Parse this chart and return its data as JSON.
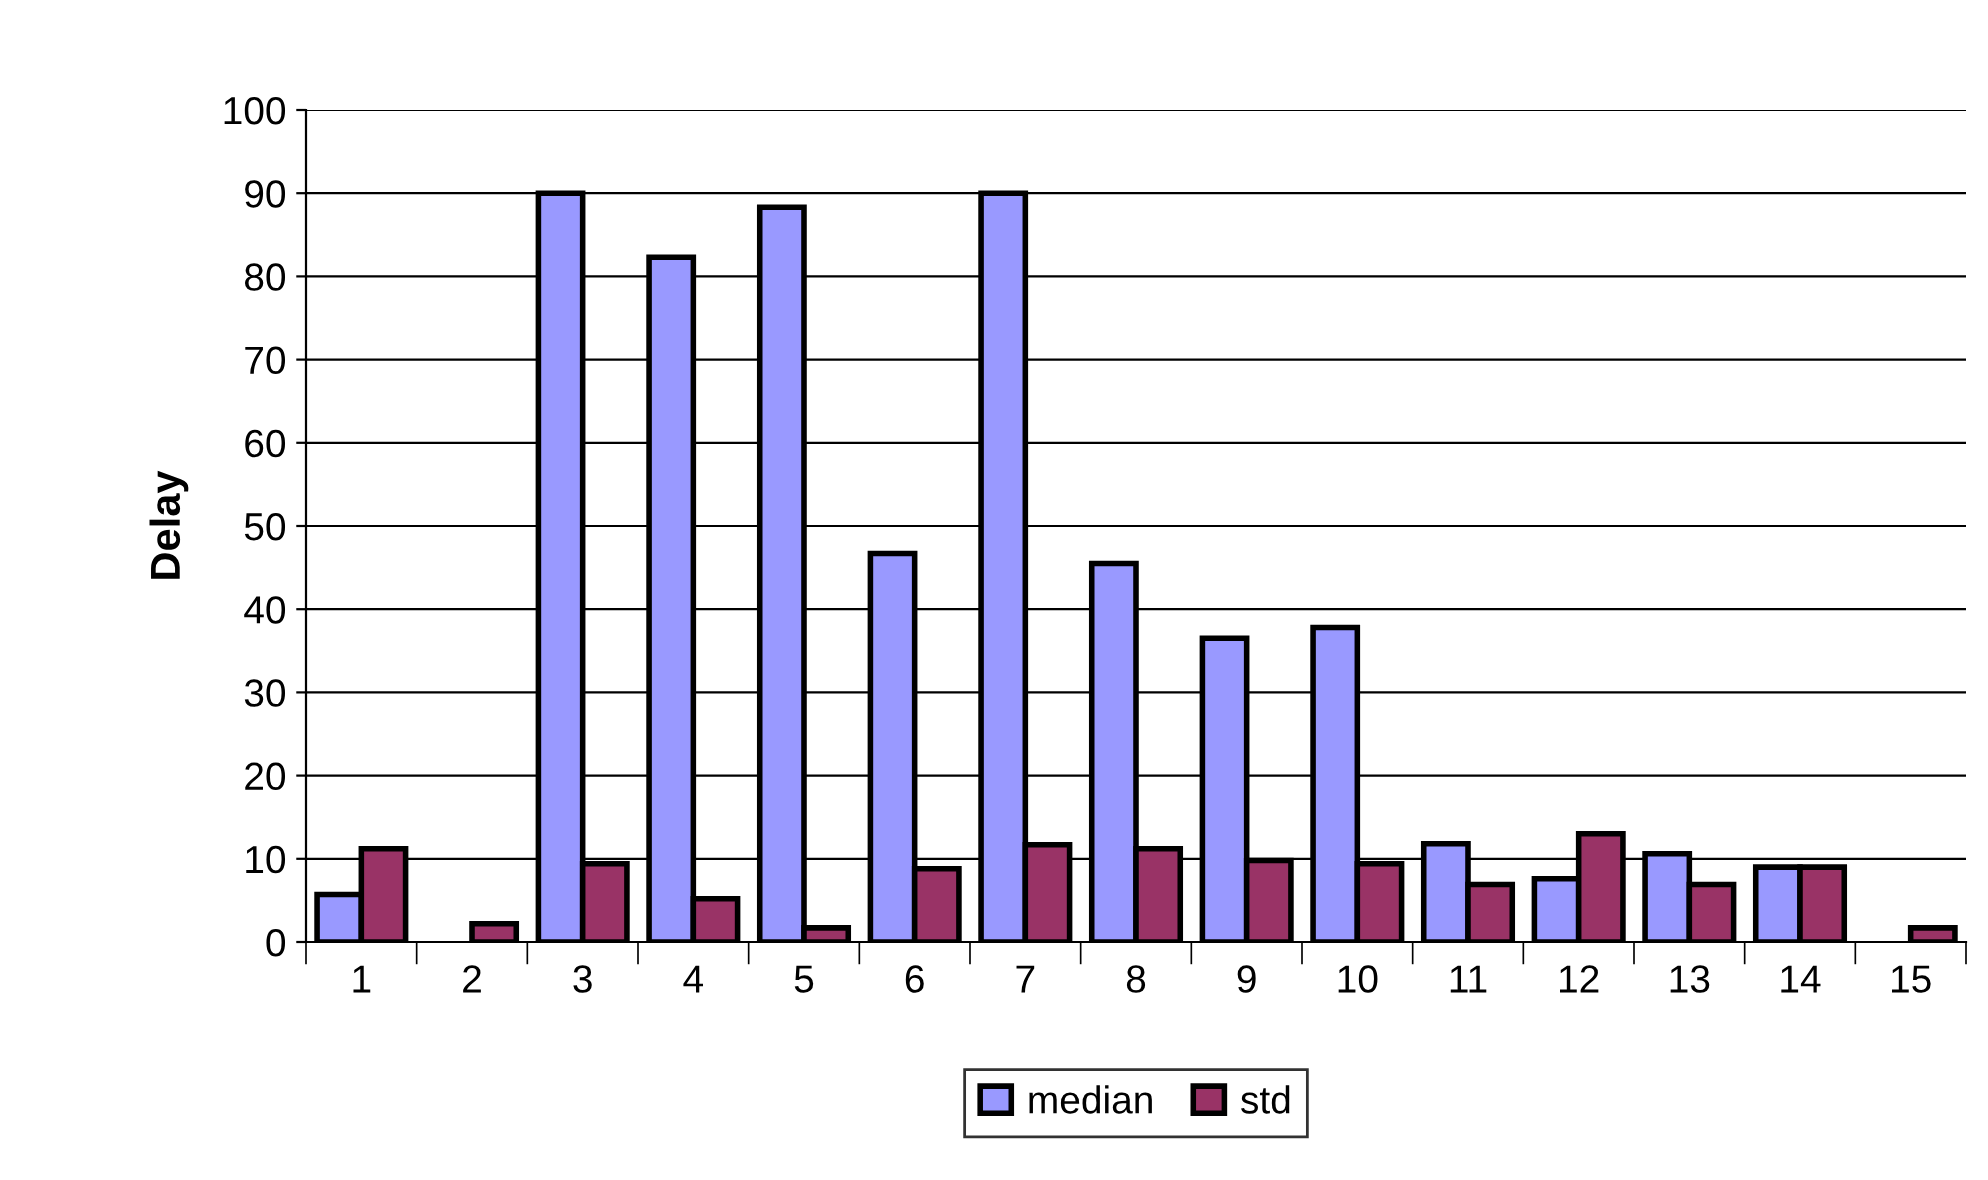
{
  "chart_data": {
    "type": "bar",
    "ylabel": "Delay",
    "categories": [
      "1",
      "2",
      "3",
      "4",
      "5",
      "6",
      "7",
      "8",
      "9",
      "10",
      "11",
      "12",
      "13",
      "14",
      "15"
    ],
    "series": [
      {
        "name": "median",
        "color": "#9999ff",
        "values": [
          5.7,
          null,
          90,
          82.3,
          88.3,
          46.7,
          90,
          45.5,
          36.5,
          37.8,
          11.8,
          7.6,
          10.6,
          9,
          null
        ]
      },
      {
        "name": "std",
        "color": "#993366",
        "values": [
          11.2,
          2.2,
          9.4,
          5.2,
          1.7,
          8.8,
          11.7,
          11.2,
          9.8,
          9.4,
          6.9,
          13,
          6.9,
          9,
          1.7
        ]
      }
    ],
    "ylim": [
      0,
      100
    ],
    "yticks": [
      0,
      10,
      20,
      30,
      40,
      50,
      60,
      70,
      80,
      90,
      100
    ],
    "grid": "y",
    "legend": "bottom"
  }
}
